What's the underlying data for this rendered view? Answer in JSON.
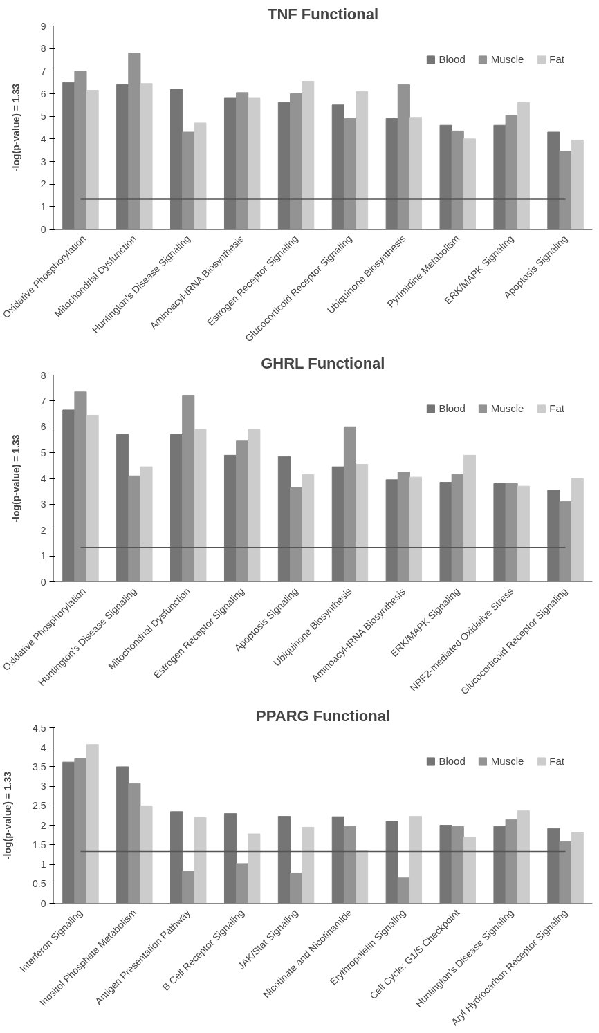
{
  "chart_data": [
    {
      "type": "bar",
      "title": "TNF Functional",
      "ylabel": "-log(p-value) = 1.33",
      "categories": [
        "Oxidative Phosphorylation",
        "Mitochondrial Dysfunction",
        "Huntington's Disease Signaling",
        "Aminoacyl-tRNA Biosynthesis",
        "Estrogen Receptor Signaling",
        "Glucocorticoid Receptor Signaling",
        "Ubiquinone Biosynthesis",
        "Pyrimidine Metabolism",
        "ERK/MAPK Signaling",
        "Apoptosis Signaling"
      ],
      "series": [
        {
          "name": "Blood",
          "color": "#757575",
          "values": [
            6.5,
            6.4,
            6.2,
            5.8,
            5.6,
            5.5,
            4.9,
            4.6,
            4.6,
            4.3
          ]
        },
        {
          "name": "Muscle",
          "color": "#939393",
          "values": [
            7.0,
            7.8,
            4.3,
            6.05,
            6.0,
            4.9,
            6.4,
            4.35,
            5.05,
            3.45
          ]
        },
        {
          "name": "Fat",
          "color": "#cccccc",
          "values": [
            6.15,
            6.45,
            4.7,
            5.8,
            6.55,
            6.1,
            4.95,
            4.0,
            5.6,
            3.95
          ]
        }
      ],
      "ylim": [
        0,
        9
      ],
      "yticks": [
        0,
        1,
        2,
        3,
        4,
        5,
        6,
        7,
        8,
        9
      ],
      "grid": false,
      "legend": "top right",
      "ref_lines": [
        {
          "axis": "y",
          "value": 1.33,
          "color": "#555555"
        }
      ]
    },
    {
      "type": "bar",
      "title": "GHRL Functional",
      "ylabel": "-log(p-value) = 1.33",
      "categories": [
        "Oxidative Phosphorylation",
        "Huntington's Disease Signaling",
        "Mitochondrial Dysfunction",
        "Estrogen Receptor Signaling",
        "Apoptosis Signaling",
        "Ubiquinone Biosynthesis",
        "Aminoacyl-tRNA Biosynthesis",
        "ERK/MAPK Signaling",
        "NRF2-mediated Oxidative Stress",
        "Glucocorticoid Receptor Signaling"
      ],
      "series": [
        {
          "name": "Blood",
          "color": "#757575",
          "values": [
            6.65,
            5.7,
            5.7,
            4.9,
            4.85,
            4.45,
            3.95,
            3.85,
            3.8,
            3.55
          ]
        },
        {
          "name": "Muscle",
          "color": "#939393",
          "values": [
            7.35,
            4.1,
            7.2,
            5.45,
            3.65,
            6.0,
            4.25,
            4.15,
            3.8,
            3.1
          ]
        },
        {
          "name": "Fat",
          "color": "#cccccc",
          "values": [
            6.45,
            4.45,
            5.9,
            5.9,
            4.15,
            4.55,
            4.05,
            4.9,
            3.7,
            4.0
          ]
        }
      ],
      "ylim": [
        0,
        8
      ],
      "yticks": [
        0,
        1,
        2,
        3,
        4,
        5,
        6,
        7,
        8
      ],
      "grid": false,
      "legend": "top right",
      "ref_lines": [
        {
          "axis": "y",
          "value": 1.33,
          "color": "#555555"
        }
      ]
    },
    {
      "type": "bar",
      "title": "PPARG Functional",
      "ylabel": "-log(p-value) = 1.33",
      "categories": [
        "Interferon Signaling",
        "Inositol Phosphate Metabolism",
        "Antigen Presentation Pathway",
        "B Cell Receptor Signaling",
        "JAK/Stat Signaling",
        "Nicotinate and Nicotinamide",
        "Erythropoietin Signaling",
        "Cell Cycle: G1/S Checkpoint",
        "Huntington's Disease Signaling",
        "Aryl Hydrocarbon Receptor Signaling"
      ],
      "series": [
        {
          "name": "Blood",
          "color": "#757575",
          "values": [
            3.62,
            3.5,
            2.35,
            2.3,
            2.23,
            2.22,
            2.1,
            2.0,
            1.97,
            1.92
          ]
        },
        {
          "name": "Muscle",
          "color": "#939393",
          "values": [
            3.72,
            3.07,
            0.83,
            1.02,
            0.78,
            1.97,
            0.65,
            1.97,
            2.15,
            1.58
          ]
        },
        {
          "name": "Fat",
          "color": "#cccccc",
          "values": [
            4.07,
            2.5,
            2.2,
            1.78,
            1.95,
            1.35,
            2.23,
            1.7,
            2.37,
            1.82
          ]
        }
      ],
      "ylim": [
        0,
        4.5
      ],
      "yticks": [
        0,
        0.5,
        1,
        1.5,
        2,
        2.5,
        3,
        3.5,
        4,
        4.5
      ],
      "grid": false,
      "legend": "top right",
      "ref_lines": [
        {
          "axis": "y",
          "value": 1.33,
          "color": "#555555"
        }
      ]
    }
  ]
}
